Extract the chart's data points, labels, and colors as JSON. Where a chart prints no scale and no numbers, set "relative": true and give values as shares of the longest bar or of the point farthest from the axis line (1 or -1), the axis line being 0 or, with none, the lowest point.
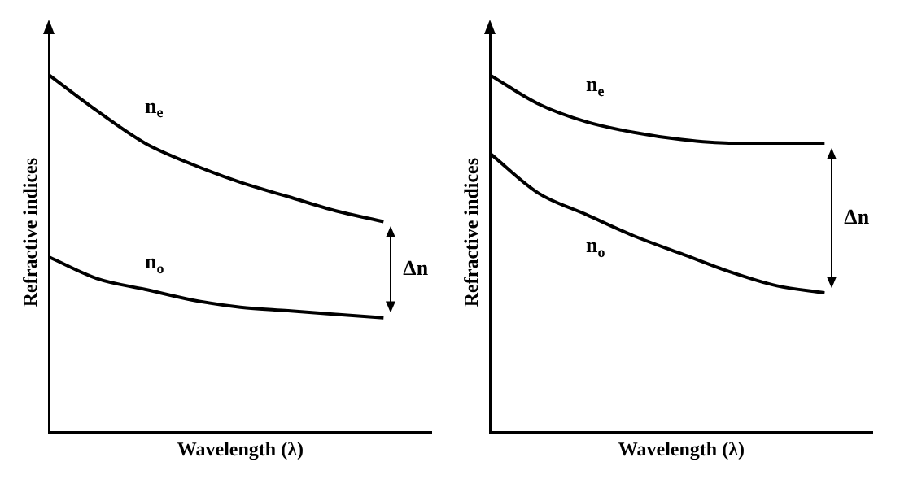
{
  "chart_data": [
    {
      "type": "line",
      "relative": true,
      "xlabel": "Wavelength (λ)",
      "ylabel": "Refractive indices",
      "categories": [
        null,
        null,
        null,
        null,
        null,
        null,
        null,
        null,
        null
      ],
      "series": [
        {
          "name": "n$_{e}$",
          "color": "#000000",
          "values": [
            1,
            0.9,
            0.81,
            0.75,
            0.7,
            0.66,
            0.62,
            0.59,
            null
          ]
        },
        {
          "name": "n$_{o}$",
          "color": "#000000",
          "values": [
            0.49,
            0.43,
            0.4,
            0.37,
            0.35,
            0.34,
            0.33,
            0.32,
            null
          ]
        }
      ],
      "annotations": [
        "Δn"
      ],
      "legend": false,
      "grid": false,
      "tick_labels": false,
      "marker": "none",
      "line_style": "solid"
    },
    {
      "type": "line",
      "relative": true,
      "xlabel": "Wavelength (λ)",
      "ylabel": "Refractive indices",
      "categories": [
        null,
        null,
        null,
        null,
        null,
        null,
        null,
        null,
        null
      ],
      "series": [
        {
          "name": "n$_{e}$",
          "color": "#000000",
          "values": [
            1,
            0.92,
            0.87,
            0.84,
            0.82,
            0.81,
            0.81,
            0.81,
            null
          ]
        },
        {
          "name": "n$_{o}$",
          "color": "#000000",
          "values": [
            0.78,
            0.67,
            0.61,
            0.55,
            0.5,
            0.45,
            0.41,
            0.39,
            null
          ]
        }
      ],
      "annotations": [
        "Δn"
      ],
      "legend": false,
      "grid": false,
      "tick_labels": false,
      "marker": "none",
      "line_style": "solid"
    }
  ]
}
